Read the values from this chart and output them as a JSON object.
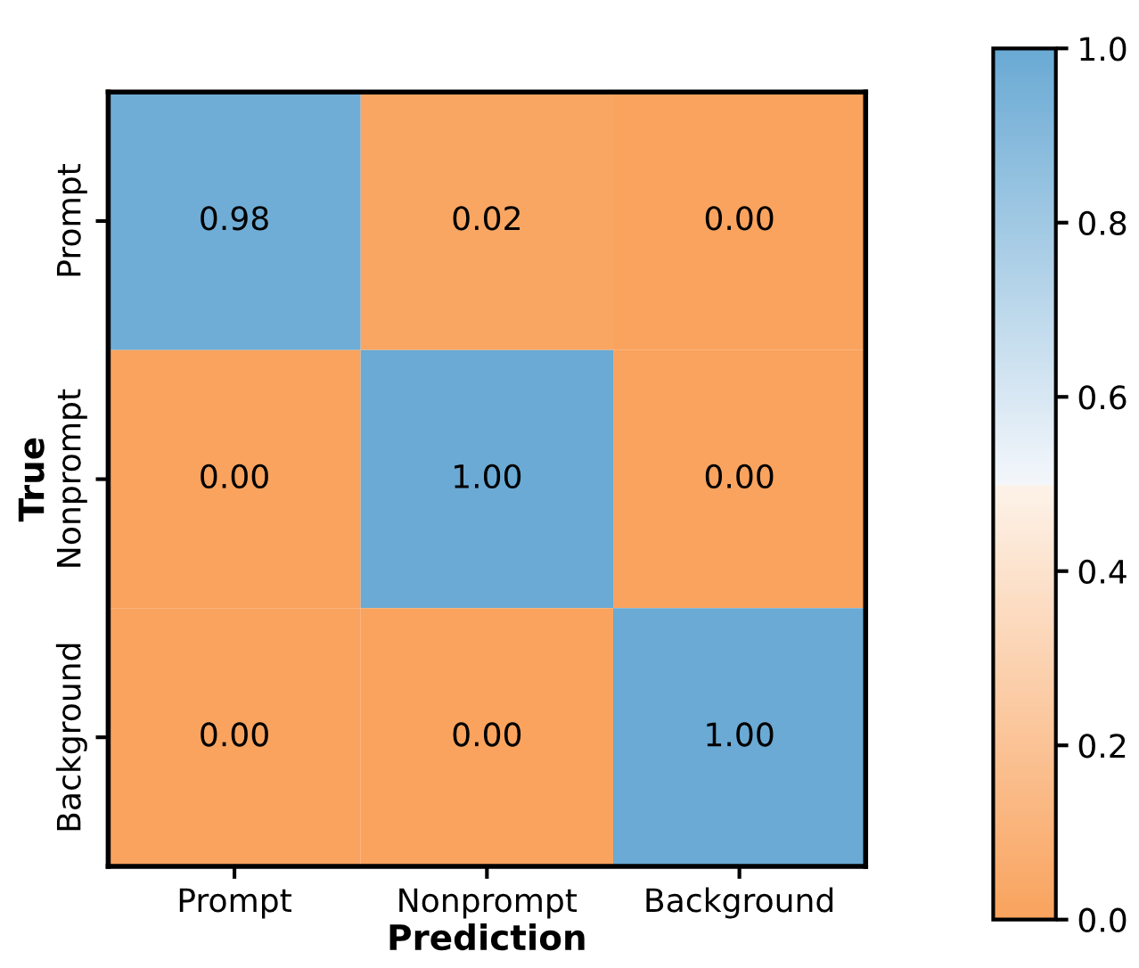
{
  "chart_data": {
    "type": "heatmap",
    "xlabel": "Prediction",
    "ylabel": "True",
    "categories": [
      "Prompt",
      "Nonprompt",
      "Background"
    ],
    "y_categories": [
      "Prompt",
      "Nonprompt",
      "Background"
    ],
    "cells": [
      [
        0.98,
        0.02,
        0.0
      ],
      [
        0.0,
        1.0,
        0.0
      ],
      [
        0.0,
        0.0,
        1.0
      ]
    ],
    "cell_labels": [
      [
        "0.98",
        "0.02",
        "0.00"
      ],
      [
        "0.00",
        "1.00",
        "0.00"
      ],
      [
        "0.00",
        "0.00",
        "1.00"
      ]
    ],
    "clim": [
      0,
      1
    ],
    "cticks": [
      {
        "value": 0,
        "label": "0.0"
      },
      {
        "value": 0.2,
        "label": "0.2"
      },
      {
        "value": 0.4,
        "label": "0.4"
      },
      {
        "value": 0.6,
        "label": "0.6"
      },
      {
        "value": 0.8,
        "label": "0.8"
      },
      {
        "value": 1,
        "label": "1.0"
      }
    ]
  }
}
